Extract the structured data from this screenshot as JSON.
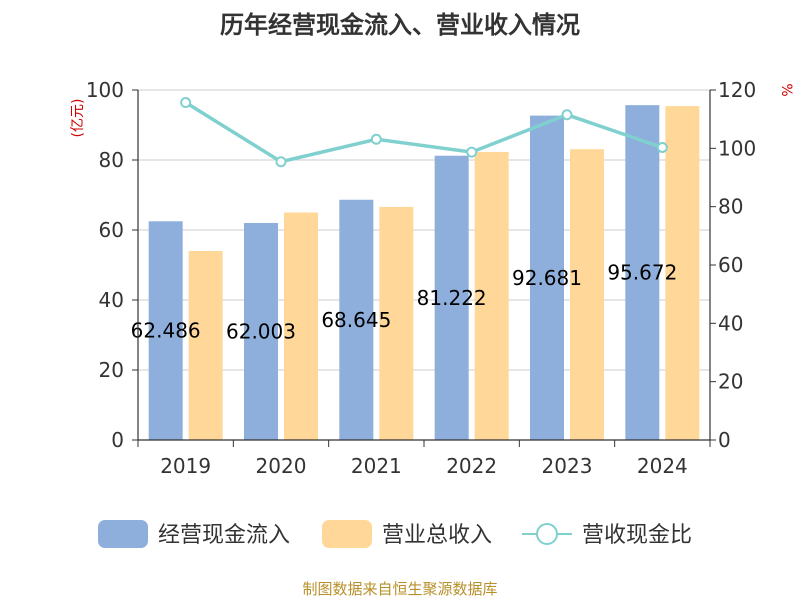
{
  "chart_data": {
    "type": "bar",
    "title": "历年经营现金流入、营业收入情况",
    "categories": [
      "2019",
      "2020",
      "2021",
      "2022",
      "2023",
      "2024"
    ],
    "y_left": {
      "unit": "(亿元)",
      "lim": [
        0,
        100
      ],
      "ticks": [
        "0",
        "20",
        "40",
        "60",
        "80",
        "100"
      ]
    },
    "y_right": {
      "unit": "%",
      "lim": [
        0,
        120
      ],
      "ticks": [
        "0",
        "20",
        "40",
        "60",
        "80",
        "100",
        "120"
      ]
    },
    "series": [
      {
        "name": "经营现金流入",
        "type": "bar",
        "axis": "left",
        "color": "#8eaedb",
        "values": [
          62.486,
          62.003,
          68.645,
          81.222,
          92.681,
          95.672
        ],
        "labels": [
          "62.486",
          "62.003",
          "68.645",
          "81.222",
          "92.681",
          "95.672"
        ]
      },
      {
        "name": "营业总收入",
        "type": "bar",
        "axis": "left",
        "color": "#ffd899",
        "values": [
          54.0,
          65.0,
          66.6,
          82.3,
          83.1,
          95.4
        ]
      },
      {
        "name": "营收现金比",
        "type": "line",
        "axis": "right",
        "color": "#80d0d0",
        "values": [
          115.7,
          95.4,
          103.1,
          98.7,
          111.5,
          100.3
        ]
      }
    ],
    "grid": true,
    "legend": "bottom"
  },
  "footer": {
    "source": "制图数据来自恒生聚源数据库"
  }
}
